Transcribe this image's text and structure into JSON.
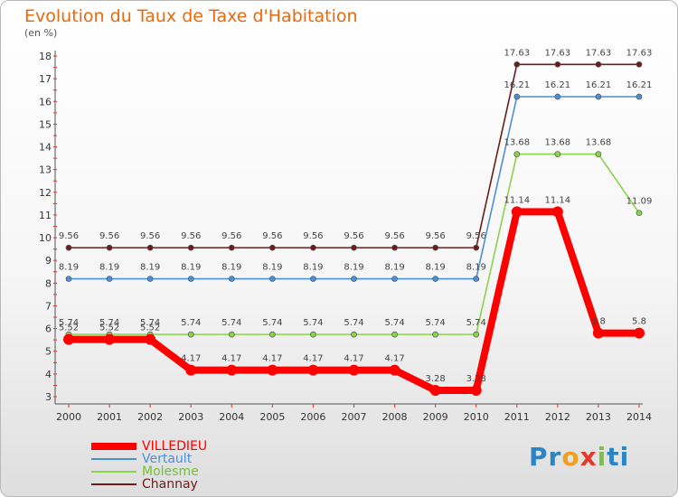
{
  "chart_data": {
    "type": "line",
    "title": "Evolution du Taux de Taxe d'Habitation",
    "ylabel": "(en %)",
    "xlabel": "",
    "ylim": [
      3,
      18
    ],
    "yticks": [
      3,
      4,
      5,
      6,
      7,
      8,
      9,
      10,
      11,
      12,
      13,
      14,
      15,
      16,
      17,
      18
    ],
    "grid": false,
    "legend_position": "bottom-left",
    "x": [
      "2000",
      "2001",
      "2002",
      "2003",
      "2004",
      "2005",
      "2006",
      "2007",
      "2008",
      "2009",
      "2010",
      "2011",
      "2012",
      "2013",
      "2014"
    ],
    "series": [
      {
        "name": "Channay",
        "color": "#6b1c1c",
        "values": [
          9.56,
          9.56,
          9.56,
          9.56,
          9.56,
          9.56,
          9.56,
          9.56,
          9.56,
          9.56,
          9.56,
          17.63,
          17.63,
          17.63,
          17.63
        ]
      },
      {
        "name": "Vertault",
        "color": "#4a90d6",
        "values": [
          8.19,
          8.19,
          8.19,
          8.19,
          8.19,
          8.19,
          8.19,
          8.19,
          8.19,
          8.19,
          8.19,
          16.21,
          16.21,
          16.21,
          16.21
        ]
      },
      {
        "name": "Molesme",
        "color": "#8ad34a",
        "values": [
          5.74,
          5.74,
          5.74,
          5.74,
          5.74,
          5.74,
          5.74,
          5.74,
          5.74,
          5.74,
          5.74,
          13.68,
          13.68,
          13.68,
          11.09
        ]
      },
      {
        "name": "VILLEDIEU",
        "color": "#ff0000",
        "values": [
          5.52,
          5.52,
          5.52,
          4.17,
          4.17,
          4.17,
          4.17,
          4.17,
          4.17,
          3.28,
          3.28,
          11.14,
          11.14,
          5.8,
          5.8
        ]
      }
    ],
    "legend_order": [
      "VILLEDIEU",
      "Vertault",
      "Molesme",
      "Channay"
    ]
  },
  "brand": {
    "p1": "Pr",
    "p2": "o",
    "p3": "x",
    "p4": "i",
    "p5": "ti"
  }
}
